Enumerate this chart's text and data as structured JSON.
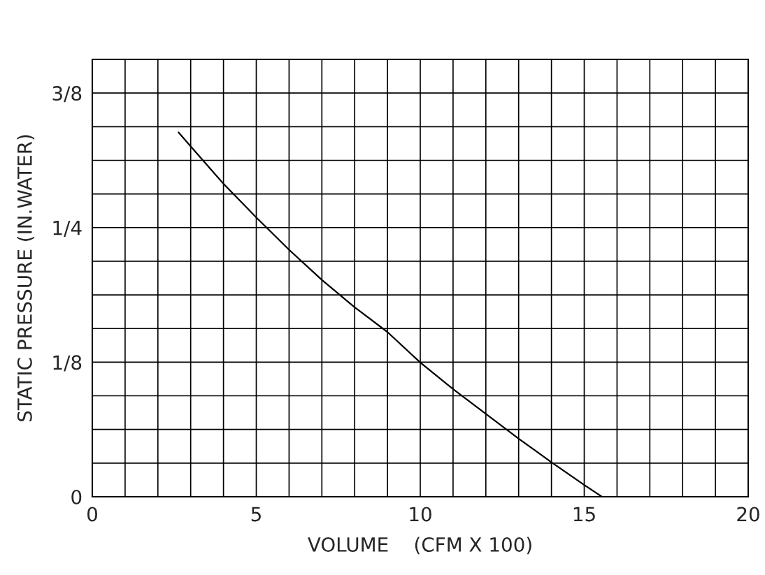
{
  "chart_data": {
    "type": "line",
    "xlabel": "VOLUME    (CFM X 100)",
    "ylabel": "STATIC PRESSURE (IN.WATER)",
    "x": [
      2.63,
      3,
      4,
      5,
      6,
      7,
      8,
      9,
      10,
      11,
      12,
      13,
      14,
      15,
      15.54
    ],
    "series": [
      {
        "color": "#000000",
        "values": [
          0.3385,
          0.3255,
          0.2907,
          0.2594,
          0.2294,
          0.2014,
          0.176,
          0.153,
          0.1247,
          0.1,
          0.077,
          0.054,
          0.032,
          0.011,
          0
        ]
      }
    ],
    "xlim": [
      0,
      20
    ],
    "ylim": [
      0,
      0.40625
    ],
    "xticks": [
      0,
      {
        "value": 1,
        "label": null
      },
      {
        "value": 2,
        "label": null
      },
      {
        "value": 3,
        "label": null
      },
      {
        "value": 4,
        "label": null
      },
      5,
      {
        "value": 6,
        "label": null
      },
      {
        "value": 7,
        "label": null
      },
      {
        "value": 8,
        "label": null
      },
      {
        "value": 9,
        "label": null
      },
      10,
      {
        "value": 11,
        "label": null
      },
      {
        "value": 12,
        "label": null
      },
      {
        "value": 13,
        "label": null
      },
      {
        "value": 14,
        "label": null
      },
      15,
      {
        "value": 16,
        "label": null
      },
      {
        "value": 17,
        "label": null
      },
      {
        "value": 18,
        "label": null
      },
      {
        "value": 19,
        "label": null
      },
      20
    ],
    "yticks": [
      0,
      {
        "value": 0.03125,
        "label": null
      },
      {
        "value": 0.0625,
        "label": null
      },
      {
        "value": 0.09375,
        "label": null
      },
      {
        "value": 0.125,
        "label": "1/8"
      },
      {
        "value": 0.15625,
        "label": null
      },
      {
        "value": 0.1875,
        "label": null
      },
      {
        "value": 0.21875,
        "label": null
      },
      {
        "value": 0.25,
        "label": "1/4"
      },
      {
        "value": 0.28125,
        "label": null
      },
      {
        "value": 0.3125,
        "label": null
      },
      {
        "value": 0.34375,
        "label": null
      },
      {
        "value": 0.375,
        "label": "3/8"
      },
      {
        "value": 0.40625,
        "label": null
      }
    ],
    "grid": true,
    "marker": "none",
    "line_style": "solid",
    "legend": false
  }
}
